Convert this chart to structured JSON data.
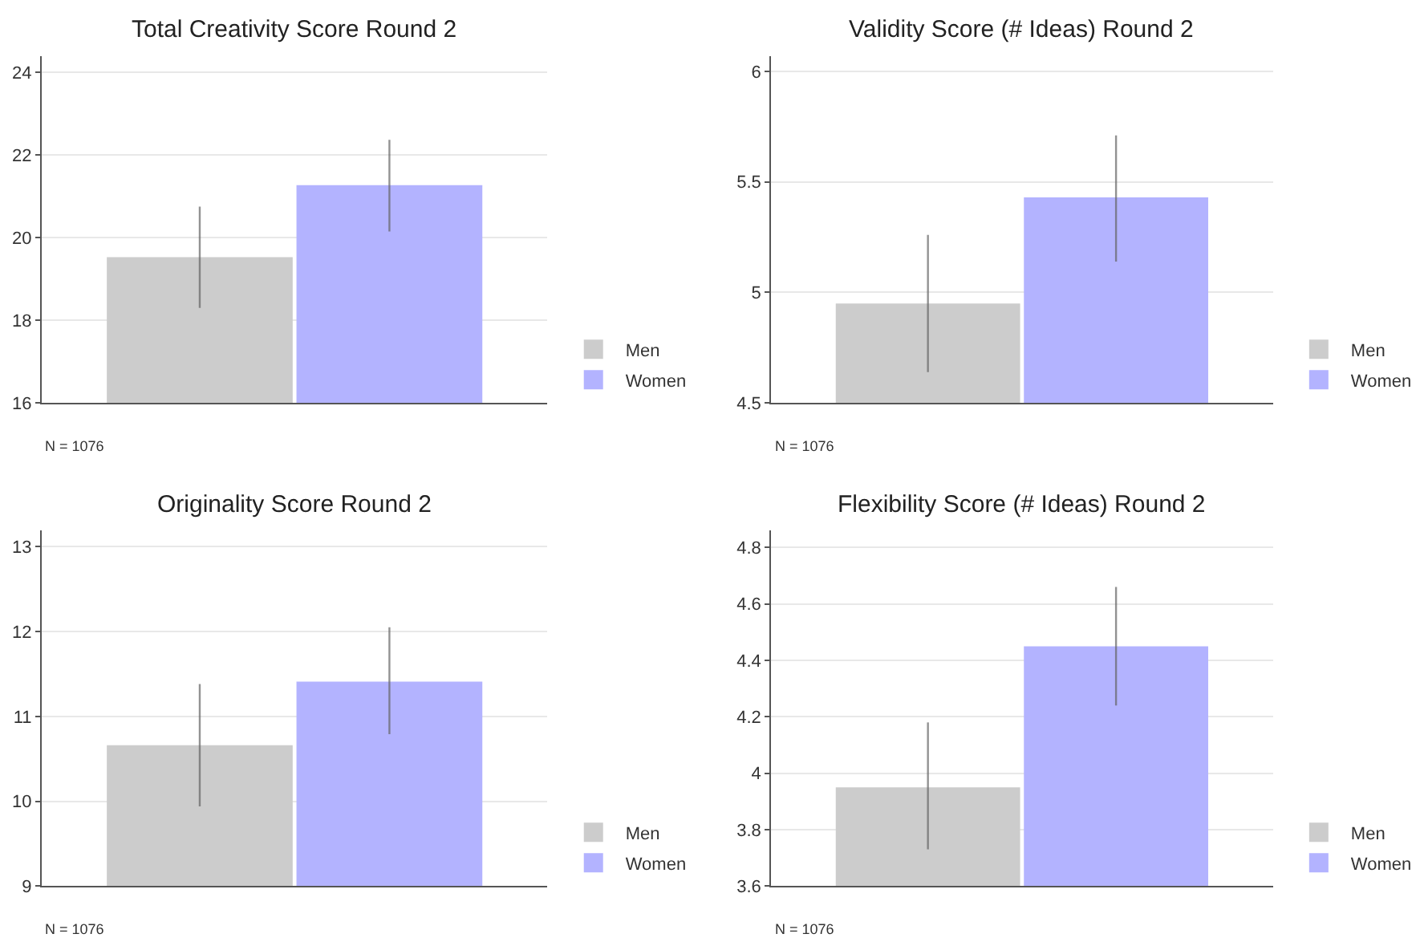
{
  "chart_data": [
    {
      "type": "bar",
      "title": "Total Creativity Score Round 2",
      "categories": [
        null
      ],
      "ylim": [
        16,
        24.4
      ],
      "yticks": [
        16,
        18,
        20,
        22,
        24
      ],
      "grid": "y",
      "legend": "bottom right",
      "annotations": [
        "N = 1076"
      ],
      "series": [
        {
          "name": "Men",
          "color": "#cccccc",
          "values": [
            19.53
          ],
          "errors": [
            [
              18.3,
              20.75
            ]
          ]
        },
        {
          "name": "Women",
          "color": "#b3b3ff",
          "values": [
            21.27
          ],
          "errors": [
            [
              20.15,
              22.37
            ]
          ]
        }
      ]
    },
    {
      "type": "bar",
      "title": "Validity Score (# Ideas) Round 2",
      "categories": [
        null
      ],
      "ylim": [
        4.5,
        6.07
      ],
      "yticks": [
        4.5,
        5,
        5.5,
        6
      ],
      "grid": "y",
      "legend": "bottom right",
      "annotations": [
        "N = 1076"
      ],
      "series": [
        {
          "name": "Men",
          "color": "#cccccc",
          "values": [
            4.95
          ],
          "errors": [
            [
              4.64,
              5.26
            ]
          ]
        },
        {
          "name": "Women",
          "color": "#b3b3ff",
          "values": [
            5.43
          ],
          "errors": [
            [
              5.14,
              5.71
            ]
          ]
        }
      ]
    },
    {
      "type": "bar",
      "title": "Originality Score Round 2",
      "categories": [
        null
      ],
      "ylim": [
        9,
        13.19
      ],
      "yticks": [
        9,
        10,
        11,
        12,
        13
      ],
      "grid": "y",
      "legend": "bottom right",
      "annotations": [
        "N = 1076"
      ],
      "series": [
        {
          "name": "Men",
          "color": "#cccccc",
          "values": [
            10.66
          ],
          "errors": [
            [
              9.94,
              11.38
            ]
          ]
        },
        {
          "name": "Women",
          "color": "#b3b3ff",
          "values": [
            11.41
          ],
          "errors": [
            [
              10.79,
              12.05
            ]
          ]
        }
      ]
    },
    {
      "type": "bar",
      "title": "Flexibility Score (# Ideas) Round 2",
      "categories": [
        null
      ],
      "ylim": [
        3.6,
        4.86
      ],
      "yticks": [
        3.6,
        3.8,
        4,
        4.2,
        4.4,
        4.6,
        4.8
      ],
      "grid": "y",
      "legend": "bottom right",
      "annotations": [
        "N = 1076"
      ],
      "series": [
        {
          "name": "Men",
          "color": "#cccccc",
          "values": [
            3.95
          ],
          "errors": [
            [
              3.73,
              4.18
            ]
          ]
        },
        {
          "name": "Women",
          "color": "#b3b3ff",
          "values": [
            4.45
          ],
          "errors": [
            [
              4.24,
              4.66
            ]
          ]
        }
      ]
    }
  ]
}
